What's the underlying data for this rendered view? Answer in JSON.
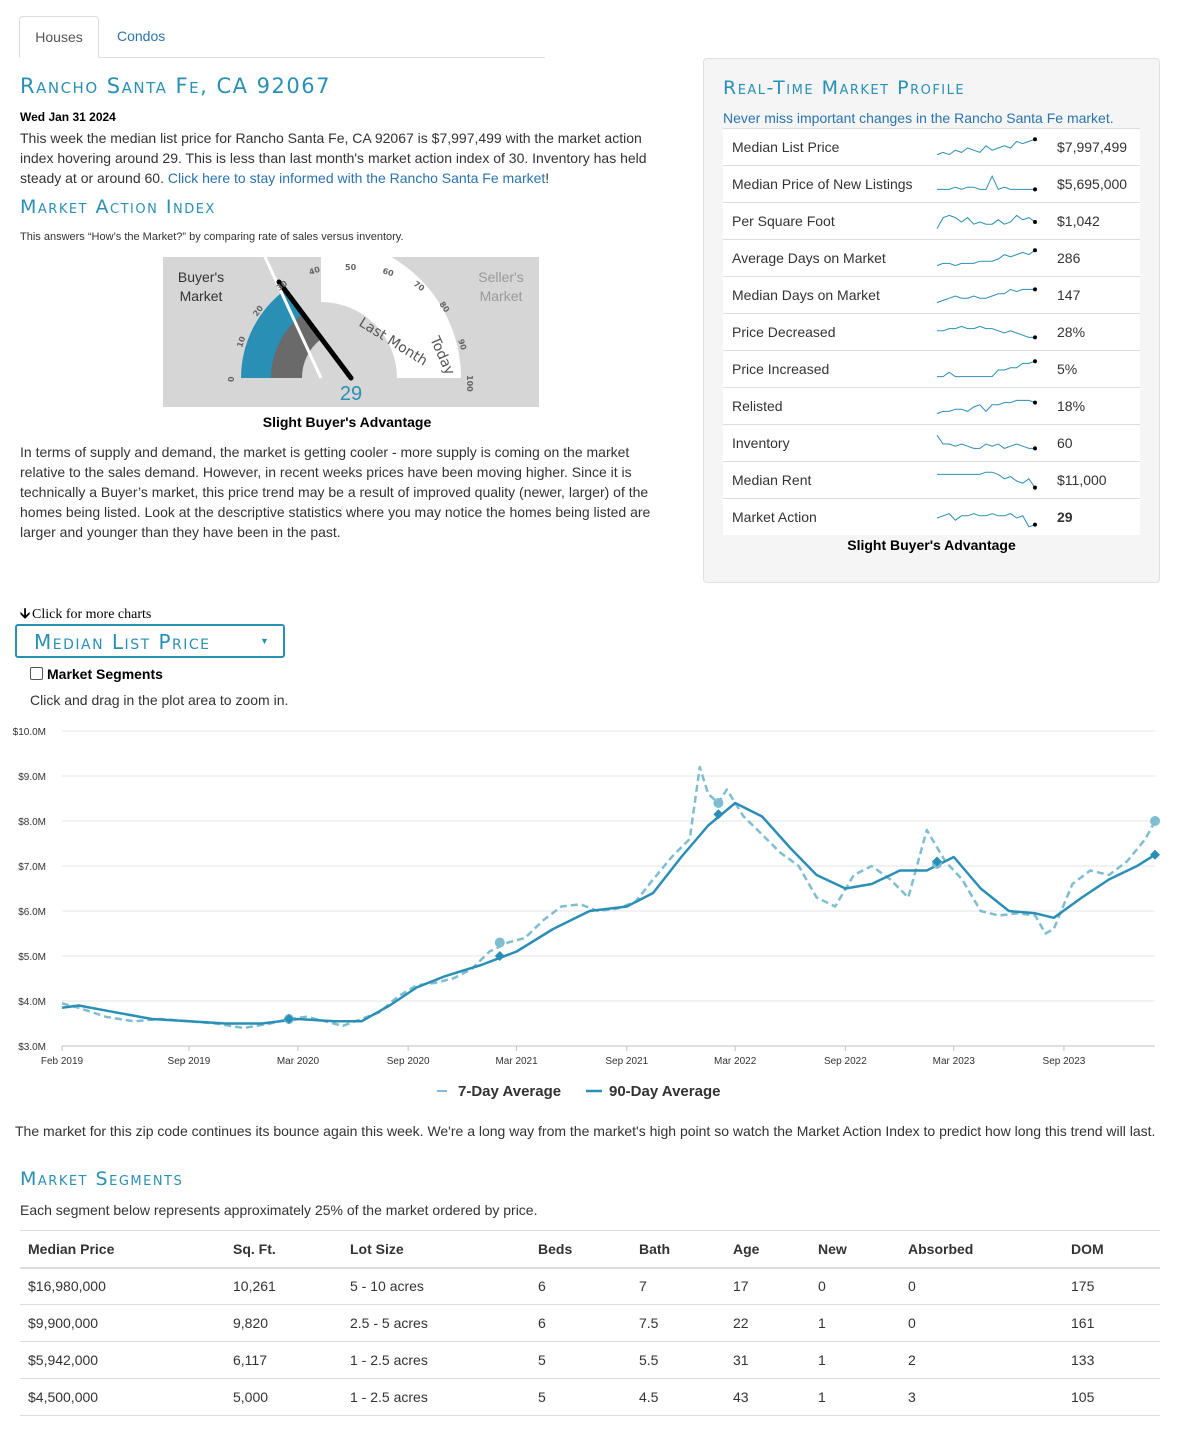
{
  "tabs": [
    "Houses",
    "Condos"
  ],
  "location_title": "Rancho Santa Fe, CA 92067",
  "date": "Wed Jan 31 2024",
  "summary": {
    "text": "This week the median list price for Rancho Santa Fe, CA 92067 is $7,997,499 with the market action index hovering around 29. This is less than last month's market action index of 30. Inventory has held steady at or around 60.",
    "link": "Click here to stay informed with the Rancho Santa Fe market",
    "link_suffix": "!"
  },
  "mai": {
    "heading": "Market Action Index",
    "subtitle": "This answers “How’s the Market?” by comparing rate of sales versus inventory.",
    "buyers_label_1": "Buyer's",
    "buyers_label_2": "Market",
    "sellers_label_1": "Seller's",
    "sellers_label_2": "Market",
    "ticks": [
      "0",
      "10",
      "20",
      "30",
      "40",
      "50",
      "60",
      "70",
      "80",
      "90",
      "100"
    ],
    "last_month_label": "Last Month",
    "today_label": "Today",
    "value": "29",
    "last_month_value": 30,
    "caption": "Slight Buyer's Advantage",
    "colors": {
      "buyer": "#2a8fb5",
      "last_month": "#6a6a6a",
      "box": "#d6d6d6"
    }
  },
  "analysis": "In terms of supply and demand, the market is getting cooler - more supply is coming on the market relative to the sales demand. However, in recent weeks prices have been moving higher. Since it is technically a Buyer’s market, this price trend may be a result of improved quality (newer, larger) of the homes being listed. Look at the descriptive statistics where you may notice the homes being listed are larger and younger than they have been in the past.",
  "profile": {
    "heading": "Real-Time Market Profile",
    "subtitle": "Never miss important changes in the Rancho Santa Fe market.",
    "rows": [
      {
        "label": "Median List Price",
        "value": "$7,997,499",
        "spark": [
          8,
          7,
          8,
          6,
          7,
          5,
          6,
          7,
          4,
          6,
          5,
          4,
          5,
          2,
          3,
          2,
          1
        ],
        "bold": false
      },
      {
        "label": "Median Price of New Listings",
        "value": "$5,695,000",
        "spark": [
          7,
          7,
          7,
          6,
          7,
          6,
          6,
          7,
          7,
          1,
          7,
          6,
          7,
          7,
          7,
          7,
          7
        ],
        "bold": false
      },
      {
        "label": "Per Square Foot",
        "value": "$1,042",
        "spark": [
          8,
          3,
          2,
          3,
          5,
          3,
          6,
          5,
          6,
          6,
          4,
          6,
          5,
          2,
          4,
          3,
          5
        ],
        "bold": false
      },
      {
        "label": "Average Days on Market",
        "value": "286",
        "spark": [
          8,
          7,
          7,
          8,
          7,
          7,
          7,
          6,
          6,
          6,
          5,
          3,
          4,
          3,
          2,
          3,
          1
        ],
        "bold": false
      },
      {
        "label": "Median Days on Market",
        "value": "147",
        "spark": [
          8,
          7,
          6,
          5,
          6,
          6,
          5,
          6,
          6,
          5,
          4,
          4,
          2,
          3,
          2,
          2,
          2
        ],
        "bold": false
      },
      {
        "label": "Price Decreased",
        "value": "28%",
        "spark": [
          4,
          4,
          3,
          3,
          2,
          3,
          3,
          2,
          3,
          3,
          4,
          5,
          4,
          5,
          6,
          7,
          7
        ],
        "bold": false
      },
      {
        "label": "Price Increased",
        "value": "5%",
        "spark": [
          8,
          8,
          6,
          8,
          8,
          8,
          8,
          8,
          8,
          8,
          5,
          5,
          4,
          4,
          2,
          2,
          1
        ],
        "bold": false
      },
      {
        "label": "Relisted",
        "value": "18%",
        "spark": [
          8,
          7,
          7,
          6,
          6,
          7,
          5,
          4,
          7,
          4,
          4,
          3,
          3,
          2,
          2,
          2,
          3
        ],
        "bold": false
      },
      {
        "label": "Inventory",
        "value": "60",
        "spark": [
          1,
          5,
          5,
          6,
          5,
          6,
          7,
          7,
          5,
          6,
          5,
          7,
          6,
          5,
          6,
          7,
          7
        ],
        "bold": false
      },
      {
        "label": "Median Rent",
        "value": "$11,000",
        "spark": [
          2,
          2,
          2,
          2,
          2,
          2,
          2,
          2,
          1,
          1,
          2,
          4,
          3,
          5,
          6,
          4,
          8
        ],
        "bold": false
      },
      {
        "label": "Market Action",
        "value": "29",
        "spark": [
          5,
          4,
          3,
          6,
          4,
          4,
          3,
          4,
          4,
          3,
          4,
          4,
          3,
          5,
          4,
          9,
          8
        ],
        "bold": true
      }
    ],
    "caption": "Slight Buyer's Advantage"
  },
  "charts_section": {
    "more_charts": "Click for more charts",
    "dropdown_label": "Median List Price",
    "segments_checkbox": "Market Segments",
    "zoom_hint": "Click and drag in the plot area to zoom in."
  },
  "chart_data": {
    "type": "line",
    "title": "",
    "ylabel": "",
    "ylim": [
      3000000,
      10000000
    ],
    "y_ticks": [
      "$3.0M",
      "$4.0M",
      "$5.0M",
      "$6.0M",
      "$7.0M",
      "$8.0M",
      "$9.0M",
      "$10.0M"
    ],
    "x_ticks": [
      "Feb 2019",
      "Sep 2019",
      "Mar 2020",
      "Sep 2020",
      "Mar 2021",
      "Sep 2021",
      "Mar 2022",
      "Sep 2022",
      "Mar 2023",
      "Sep 2023"
    ],
    "x_range": [
      "2019-02-01",
      "2024-01-31"
    ],
    "series": [
      {
        "name": "7-Day Average",
        "style": "dashed",
        "color": "#7fbdd1",
        "points": [
          [
            "2019-02-01",
            3950000
          ],
          [
            "2019-03-01",
            3850000
          ],
          [
            "2019-04-15",
            3650000
          ],
          [
            "2019-06-01",
            3550000
          ],
          [
            "2019-07-15",
            3600000
          ],
          [
            "2019-09-01",
            3550000
          ],
          [
            "2019-10-15",
            3500000
          ],
          [
            "2019-12-01",
            3400000
          ],
          [
            "2020-01-15",
            3500000
          ],
          [
            "2020-02-15",
            3600000
          ],
          [
            "2020-03-15",
            3650000
          ],
          [
            "2020-04-15",
            3550000
          ],
          [
            "2020-05-15",
            3450000
          ],
          [
            "2020-06-15",
            3600000
          ],
          [
            "2020-07-15",
            3750000
          ],
          [
            "2020-08-15",
            4100000
          ],
          [
            "2020-09-15",
            4350000
          ],
          [
            "2020-10-15",
            4400000
          ],
          [
            "2020-11-15",
            4500000
          ],
          [
            "2020-12-15",
            4700000
          ],
          [
            "2021-01-15",
            5100000
          ],
          [
            "2021-02-15",
            5300000
          ],
          [
            "2021-03-15",
            5400000
          ],
          [
            "2021-04-15",
            5800000
          ],
          [
            "2021-05-15",
            6100000
          ],
          [
            "2021-06-15",
            6150000
          ],
          [
            "2021-07-15",
            6000000
          ],
          [
            "2021-08-15",
            6050000
          ],
          [
            "2021-09-15",
            6200000
          ],
          [
            "2021-10-15",
            6700000
          ],
          [
            "2021-11-15",
            7200000
          ],
          [
            "2021-12-15",
            7600000
          ],
          [
            "2022-01-01",
            9200000
          ],
          [
            "2022-01-15",
            8600000
          ],
          [
            "2022-02-01",
            8400000
          ],
          [
            "2022-02-15",
            8700000
          ],
          [
            "2022-03-15",
            8100000
          ],
          [
            "2022-04-15",
            7700000
          ],
          [
            "2022-05-15",
            7300000
          ],
          [
            "2022-06-15",
            7000000
          ],
          [
            "2022-07-15",
            6300000
          ],
          [
            "2022-08-15",
            6100000
          ],
          [
            "2022-09-15",
            6800000
          ],
          [
            "2022-10-15",
            7000000
          ],
          [
            "2022-11-15",
            6700000
          ],
          [
            "2022-12-15",
            6300000
          ],
          [
            "2023-01-15",
            7800000
          ],
          [
            "2023-02-15",
            7100000
          ],
          [
            "2023-03-15",
            6700000
          ],
          [
            "2023-04-15",
            6000000
          ],
          [
            "2023-05-15",
            5900000
          ],
          [
            "2023-06-15",
            5950000
          ],
          [
            "2023-07-15",
            5900000
          ],
          [
            "2023-08-01",
            5500000
          ],
          [
            "2023-08-15",
            5600000
          ],
          [
            "2023-09-15",
            6600000
          ],
          [
            "2023-10-15",
            6900000
          ],
          [
            "2023-11-15",
            6800000
          ],
          [
            "2023-12-15",
            7100000
          ],
          [
            "2024-01-15",
            7600000
          ],
          [
            "2024-01-31",
            8000000
          ]
        ]
      },
      {
        "name": "90-Day Average",
        "style": "solid",
        "color": "#2a8fb5",
        "points": [
          [
            "2019-02-01",
            3850000
          ],
          [
            "2019-03-01",
            3900000
          ],
          [
            "2019-05-01",
            3750000
          ],
          [
            "2019-07-01",
            3600000
          ],
          [
            "2019-09-01",
            3550000
          ],
          [
            "2019-11-01",
            3500000
          ],
          [
            "2020-01-01",
            3500000
          ],
          [
            "2020-03-01",
            3600000
          ],
          [
            "2020-05-01",
            3550000
          ],
          [
            "2020-06-15",
            3550000
          ],
          [
            "2020-08-01",
            3900000
          ],
          [
            "2020-09-15",
            4300000
          ],
          [
            "2020-11-01",
            4550000
          ],
          [
            "2021-01-01",
            4800000
          ],
          [
            "2021-03-01",
            5100000
          ],
          [
            "2021-05-01",
            5600000
          ],
          [
            "2021-07-01",
            6000000
          ],
          [
            "2021-09-01",
            6100000
          ],
          [
            "2021-10-15",
            6400000
          ],
          [
            "2021-12-01",
            7200000
          ],
          [
            "2022-01-15",
            7900000
          ],
          [
            "2022-03-01",
            8400000
          ],
          [
            "2022-04-15",
            8100000
          ],
          [
            "2022-06-01",
            7400000
          ],
          [
            "2022-07-15",
            6800000
          ],
          [
            "2022-09-01",
            6500000
          ],
          [
            "2022-10-15",
            6600000
          ],
          [
            "2022-12-01",
            6900000
          ],
          [
            "2023-01-15",
            6900000
          ],
          [
            "2023-03-01",
            7200000
          ],
          [
            "2023-04-15",
            6500000
          ],
          [
            "2023-06-01",
            6000000
          ],
          [
            "2023-07-15",
            5950000
          ],
          [
            "2023-08-15",
            5850000
          ],
          [
            "2023-10-01",
            6300000
          ],
          [
            "2023-11-15",
            6700000
          ],
          [
            "2024-01-01",
            7000000
          ],
          [
            "2024-01-31",
            7250000
          ]
        ]
      }
    ],
    "markers": [
      {
        "series": "7-Day Average",
        "shape": "circle",
        "x": "2020-02-15",
        "y": 3600000
      },
      {
        "series": "7-Day Average",
        "shape": "circle",
        "x": "2021-02-01",
        "y": 5300000
      },
      {
        "series": "7-Day Average",
        "shape": "circle",
        "x": "2022-02-01",
        "y": 8400000
      },
      {
        "series": "7-Day Average",
        "shape": "circle",
        "x": "2023-02-01",
        "y": 7050000
      },
      {
        "series": "7-Day Average",
        "shape": "circle",
        "x": "2024-01-31",
        "y": 8000000
      },
      {
        "series": "90-Day Average",
        "shape": "diamond",
        "x": "2020-02-15",
        "y": 3600000
      },
      {
        "series": "90-Day Average",
        "shape": "diamond",
        "x": "2021-02-01",
        "y": 5000000
      },
      {
        "series": "90-Day Average",
        "shape": "diamond",
        "x": "2022-02-01",
        "y": 8150000
      },
      {
        "series": "90-Day Average",
        "shape": "diamond",
        "x": "2023-02-01",
        "y": 7100000
      },
      {
        "series": "90-Day Average",
        "shape": "diamond",
        "x": "2024-01-31",
        "y": 7250000
      }
    ],
    "grid": true,
    "legend": "bottom-center"
  },
  "chart_comment": "The market for this zip code continues its bounce again this week. We're a long way from the market's high point so watch the Market Action Index to predict how long this trend will last.",
  "segments": {
    "heading": "Market Segments",
    "subtitle": "Each segment below represents approximately 25% of the market ordered by price.",
    "columns": [
      "Median Price",
      "Sq. Ft.",
      "Lot Size",
      "Beds",
      "Bath",
      "Age",
      "New",
      "Absorbed",
      "DOM"
    ],
    "rows": [
      [
        "$16,980,000",
        "10,261",
        "5 - 10 acres",
        "6",
        "7",
        "17",
        "0",
        "0",
        "175"
      ],
      [
        "$9,900,000",
        "9,820",
        "2.5 - 5 acres",
        "6",
        "7.5",
        "22",
        "1",
        "0",
        "161"
      ],
      [
        "$5,942,000",
        "6,117",
        "1 - 2.5 acres",
        "5",
        "5.5",
        "31",
        "1",
        "2",
        "133"
      ],
      [
        "$4,500,000",
        "5,000",
        "1 - 2.5 acres",
        "5",
        "4.5",
        "43",
        "1",
        "3",
        "105"
      ]
    ]
  }
}
